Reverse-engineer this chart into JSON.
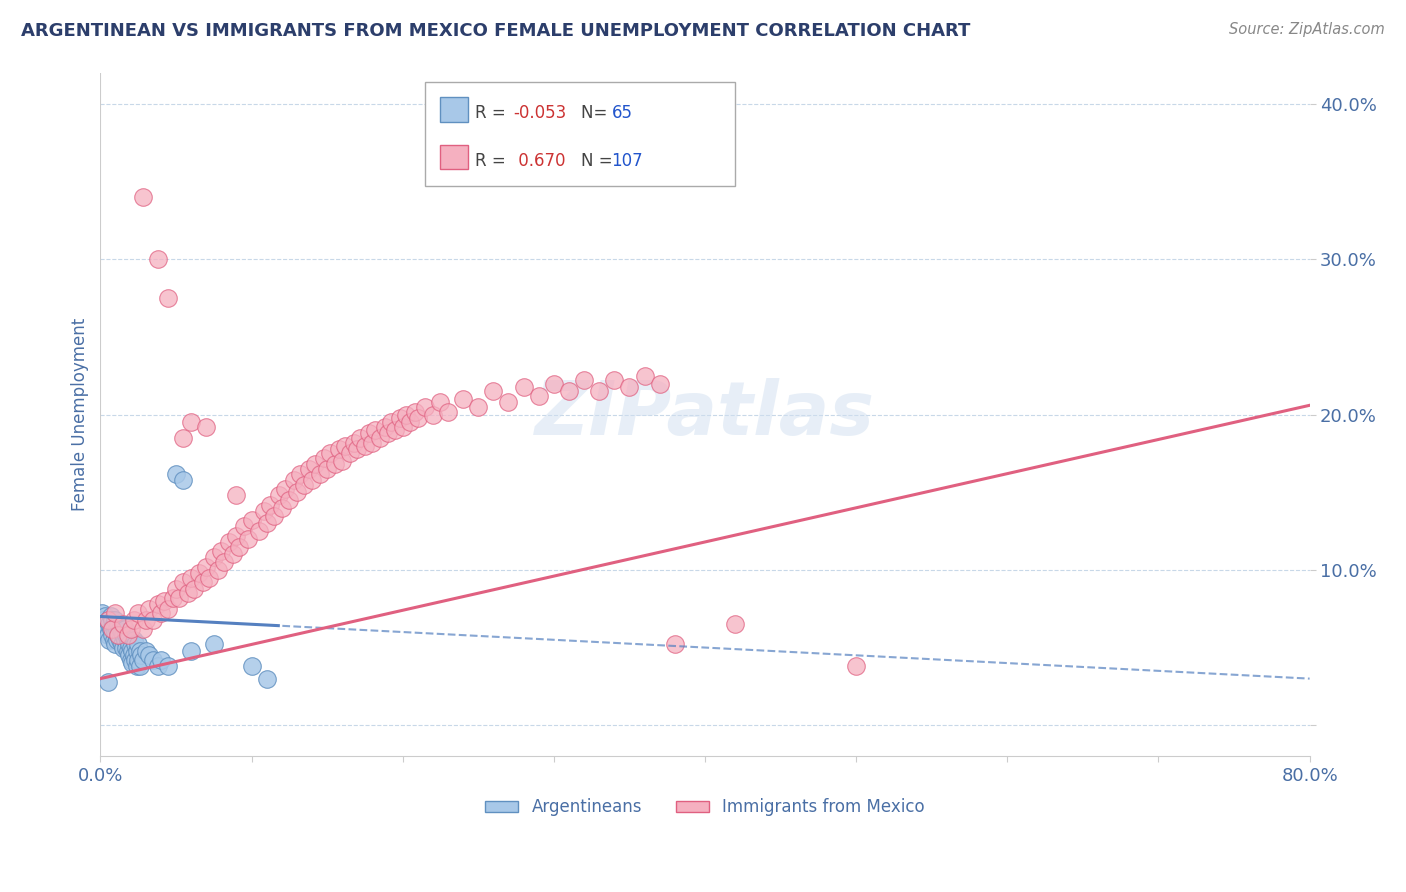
{
  "title": "ARGENTINEAN VS IMMIGRANTS FROM MEXICO FEMALE UNEMPLOYMENT CORRELATION CHART",
  "source": "Source: ZipAtlas.com",
  "ylabel": "Female Unemployment",
  "xlim": [
    0.0,
    0.8
  ],
  "ylim": [
    -0.02,
    0.42
  ],
  "yticks": [
    0.0,
    0.1,
    0.2,
    0.3,
    0.4
  ],
  "ytick_labels": [
    "",
    "10.0%",
    "20.0%",
    "30.0%",
    "40.0%"
  ],
  "xticks": [
    0.0,
    0.1,
    0.2,
    0.3,
    0.4,
    0.5,
    0.6,
    0.7,
    0.8
  ],
  "xtick_labels": [
    "0.0%",
    "",
    "",
    "",
    "",
    "",
    "",
    "",
    "80.0%"
  ],
  "color_arg": "#a8c8e8",
  "color_mex": "#f5b0c0",
  "color_arg_edge": "#6090c0",
  "color_mex_edge": "#e06080",
  "color_arg_line": "#5580c0",
  "color_mex_line": "#e06080",
  "bg_color": "#ffffff",
  "title_color": "#2c3e6b",
  "axis_label_color": "#4a6fa5",
  "tick_color": "#4a6fa5",
  "grid_color": "#c8d8e8",
  "arg_points": [
    [
      0.001,
      0.072
    ],
    [
      0.002,
      0.068
    ],
    [
      0.003,
      0.07
    ],
    [
      0.004,
      0.065
    ],
    [
      0.004,
      0.06
    ],
    [
      0.005,
      0.068
    ],
    [
      0.005,
      0.058
    ],
    [
      0.006,
      0.065
    ],
    [
      0.006,
      0.055
    ],
    [
      0.007,
      0.07
    ],
    [
      0.007,
      0.062
    ],
    [
      0.008,
      0.068
    ],
    [
      0.008,
      0.058
    ],
    [
      0.009,
      0.065
    ],
    [
      0.009,
      0.055
    ],
    [
      0.01,
      0.068
    ],
    [
      0.01,
      0.06
    ],
    [
      0.01,
      0.052
    ],
    [
      0.011,
      0.062
    ],
    [
      0.011,
      0.055
    ],
    [
      0.012,
      0.065
    ],
    [
      0.012,
      0.058
    ],
    [
      0.013,
      0.062
    ],
    [
      0.013,
      0.055
    ],
    [
      0.014,
      0.06
    ],
    [
      0.014,
      0.052
    ],
    [
      0.015,
      0.058
    ],
    [
      0.015,
      0.05
    ],
    [
      0.016,
      0.062
    ],
    [
      0.016,
      0.055
    ],
    [
      0.017,
      0.058
    ],
    [
      0.017,
      0.05
    ],
    [
      0.018,
      0.055
    ],
    [
      0.018,
      0.048
    ],
    [
      0.019,
      0.052
    ],
    [
      0.019,
      0.045
    ],
    [
      0.02,
      0.05
    ],
    [
      0.02,
      0.042
    ],
    [
      0.021,
      0.048
    ],
    [
      0.021,
      0.04
    ],
    [
      0.022,
      0.055
    ],
    [
      0.022,
      0.045
    ],
    [
      0.023,
      0.052
    ],
    [
      0.023,
      0.042
    ],
    [
      0.024,
      0.048
    ],
    [
      0.024,
      0.038
    ],
    [
      0.025,
      0.052
    ],
    [
      0.025,
      0.042
    ],
    [
      0.026,
      0.048
    ],
    [
      0.026,
      0.038
    ],
    [
      0.027,
      0.045
    ],
    [
      0.028,
      0.042
    ],
    [
      0.03,
      0.048
    ],
    [
      0.032,
      0.045
    ],
    [
      0.035,
      0.042
    ],
    [
      0.038,
      0.038
    ],
    [
      0.04,
      0.042
    ],
    [
      0.045,
      0.038
    ],
    [
      0.05,
      0.162
    ],
    [
      0.055,
      0.158
    ],
    [
      0.06,
      0.048
    ],
    [
      0.075,
      0.052
    ],
    [
      0.1,
      0.038
    ],
    [
      0.11,
      0.03
    ],
    [
      0.005,
      0.028
    ]
  ],
  "mex_points": [
    [
      0.005,
      0.068
    ],
    [
      0.008,
      0.062
    ],
    [
      0.01,
      0.072
    ],
    [
      0.012,
      0.058
    ],
    [
      0.015,
      0.065
    ],
    [
      0.018,
      0.058
    ],
    [
      0.02,
      0.062
    ],
    [
      0.022,
      0.068
    ],
    [
      0.025,
      0.072
    ],
    [
      0.028,
      0.062
    ],
    [
      0.03,
      0.068
    ],
    [
      0.032,
      0.075
    ],
    [
      0.035,
      0.068
    ],
    [
      0.038,
      0.078
    ],
    [
      0.04,
      0.072
    ],
    [
      0.042,
      0.08
    ],
    [
      0.045,
      0.075
    ],
    [
      0.048,
      0.082
    ],
    [
      0.05,
      0.088
    ],
    [
      0.052,
      0.082
    ],
    [
      0.055,
      0.092
    ],
    [
      0.055,
      0.185
    ],
    [
      0.058,
      0.085
    ],
    [
      0.06,
      0.095
    ],
    [
      0.06,
      0.195
    ],
    [
      0.062,
      0.088
    ],
    [
      0.065,
      0.098
    ],
    [
      0.068,
      0.092
    ],
    [
      0.07,
      0.102
    ],
    [
      0.07,
      0.192
    ],
    [
      0.072,
      0.095
    ],
    [
      0.075,
      0.108
    ],
    [
      0.078,
      0.1
    ],
    [
      0.08,
      0.112
    ],
    [
      0.082,
      0.105
    ],
    [
      0.085,
      0.118
    ],
    [
      0.088,
      0.11
    ],
    [
      0.09,
      0.122
    ],
    [
      0.09,
      0.148
    ],
    [
      0.092,
      0.115
    ],
    [
      0.095,
      0.128
    ],
    [
      0.098,
      0.12
    ],
    [
      0.1,
      0.132
    ],
    [
      0.105,
      0.125
    ],
    [
      0.108,
      0.138
    ],
    [
      0.11,
      0.13
    ],
    [
      0.112,
      0.142
    ],
    [
      0.115,
      0.135
    ],
    [
      0.118,
      0.148
    ],
    [
      0.12,
      0.14
    ],
    [
      0.122,
      0.152
    ],
    [
      0.125,
      0.145
    ],
    [
      0.128,
      0.158
    ],
    [
      0.13,
      0.15
    ],
    [
      0.132,
      0.162
    ],
    [
      0.135,
      0.155
    ],
    [
      0.138,
      0.165
    ],
    [
      0.14,
      0.158
    ],
    [
      0.142,
      0.168
    ],
    [
      0.145,
      0.162
    ],
    [
      0.148,
      0.172
    ],
    [
      0.15,
      0.165
    ],
    [
      0.152,
      0.175
    ],
    [
      0.155,
      0.168
    ],
    [
      0.158,
      0.178
    ],
    [
      0.16,
      0.17
    ],
    [
      0.162,
      0.18
    ],
    [
      0.165,
      0.175
    ],
    [
      0.168,
      0.182
    ],
    [
      0.17,
      0.178
    ],
    [
      0.172,
      0.185
    ],
    [
      0.175,
      0.18
    ],
    [
      0.178,
      0.188
    ],
    [
      0.18,
      0.182
    ],
    [
      0.182,
      0.19
    ],
    [
      0.185,
      0.185
    ],
    [
      0.188,
      0.192
    ],
    [
      0.19,
      0.188
    ],
    [
      0.192,
      0.195
    ],
    [
      0.195,
      0.19
    ],
    [
      0.198,
      0.198
    ],
    [
      0.2,
      0.192
    ],
    [
      0.202,
      0.2
    ],
    [
      0.205,
      0.195
    ],
    [
      0.208,
      0.202
    ],
    [
      0.21,
      0.198
    ],
    [
      0.215,
      0.205
    ],
    [
      0.22,
      0.2
    ],
    [
      0.225,
      0.208
    ],
    [
      0.23,
      0.202
    ],
    [
      0.24,
      0.21
    ],
    [
      0.25,
      0.205
    ],
    [
      0.26,
      0.215
    ],
    [
      0.27,
      0.208
    ],
    [
      0.28,
      0.218
    ],
    [
      0.29,
      0.212
    ],
    [
      0.3,
      0.22
    ],
    [
      0.31,
      0.215
    ],
    [
      0.32,
      0.222
    ],
    [
      0.33,
      0.215
    ],
    [
      0.34,
      0.222
    ],
    [
      0.35,
      0.218
    ],
    [
      0.36,
      0.225
    ],
    [
      0.37,
      0.22
    ],
    [
      0.028,
      0.34
    ],
    [
      0.038,
      0.3
    ],
    [
      0.045,
      0.275
    ],
    [
      0.38,
      0.052
    ],
    [
      0.42,
      0.065
    ],
    [
      0.5,
      0.038
    ]
  ]
}
